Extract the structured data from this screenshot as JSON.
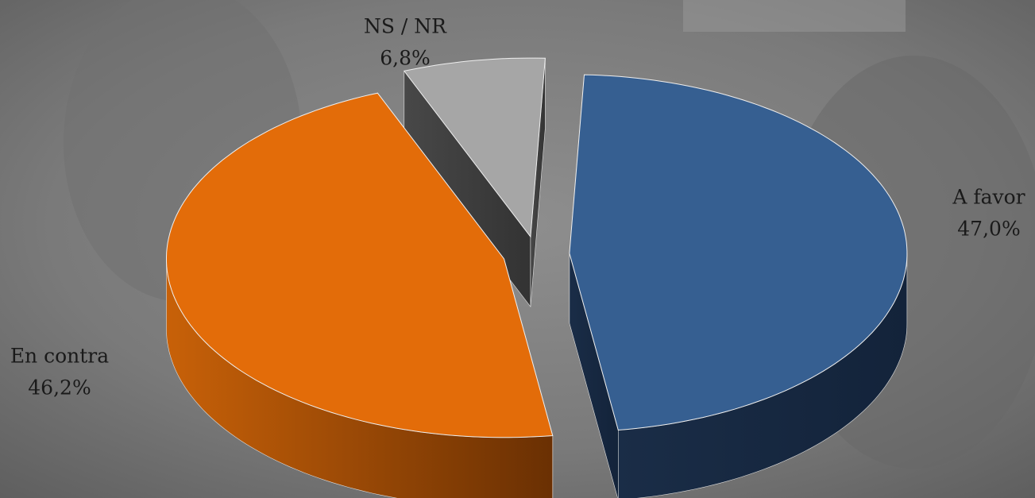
{
  "chart_data": {
    "type": "pie",
    "categories": [
      "A favor",
      "En contra",
      "NS / NR"
    ],
    "values": [
      47.0,
      46.2,
      6.8
    ],
    "value_labels": [
      "47,0%",
      "46,2%",
      "6,8%"
    ],
    "colors": [
      "#365f91",
      "#e36c09",
      "#a6a6a6"
    ]
  }
}
